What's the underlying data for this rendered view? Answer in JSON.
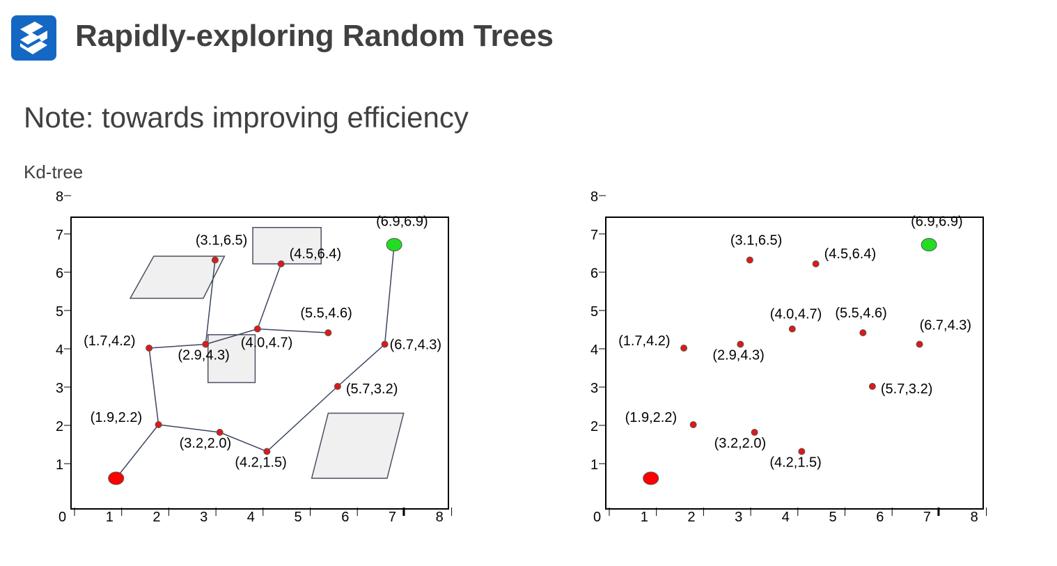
{
  "header": {
    "title": "Rapidly-exploring Random Trees",
    "logo_icon": "s-logo-icon",
    "logo_color": "#1468c4"
  },
  "section": {
    "heading": "Note: towards improving efficiency",
    "subheading": "Kd-tree"
  },
  "colors": {
    "start": "#ff0000",
    "goal": "#22dd22",
    "node": "#e01818",
    "edge": "#3c4660",
    "obstacle_fill": "#f0f0f0",
    "obstacle_stroke": "#4a5060"
  },
  "axis": {
    "x_ticks": [
      "0",
      "1",
      "2",
      "3",
      "4",
      "5",
      "6",
      "7",
      "8"
    ],
    "y_ticks": [
      "1",
      "2",
      "3",
      "4",
      "5",
      "6",
      "7",
      "8"
    ]
  },
  "start": {
    "x": 1.0,
    "y": 0.8
  },
  "goal": {
    "x": 6.9,
    "y": 6.9,
    "label": "(6.9,6.9)"
  },
  "nodes": [
    {
      "id": "n1",
      "x": 1.7,
      "y": 4.2,
      "label": "(1.7,4.2)"
    },
    {
      "id": "n2",
      "x": 1.9,
      "y": 2.2,
      "label": "(1.9,2.2)"
    },
    {
      "id": "n3",
      "x": 2.9,
      "y": 4.3,
      "label": "(2.9,4.3)"
    },
    {
      "id": "n4",
      "x": 3.1,
      "y": 6.5,
      "label": "(3.1,6.5)"
    },
    {
      "id": "n5",
      "x": 3.2,
      "y": 2.0,
      "label": "(3.2,2.0)"
    },
    {
      "id": "n6",
      "x": 4.0,
      "y": 4.7,
      "label": "(4.0,4.7)"
    },
    {
      "id": "n7",
      "x": 4.2,
      "y": 1.5,
      "label": "(4.2,1.5)"
    },
    {
      "id": "n8",
      "x": 4.5,
      "y": 6.4,
      "label": "(4.5,6.4)"
    },
    {
      "id": "n9",
      "x": 5.5,
      "y": 4.6,
      "label": "(5.5,4.6)"
    },
    {
      "id": "n10",
      "x": 5.7,
      "y": 3.2,
      "label": "(5.7,3.2)"
    },
    {
      "id": "n11",
      "x": 6.7,
      "y": 4.3,
      "label": "(6.7,4.3)"
    }
  ],
  "edges": [
    [
      "start",
      "n2"
    ],
    [
      "n2",
      "n1"
    ],
    [
      "n1",
      "n3"
    ],
    [
      "n3",
      "n4"
    ],
    [
      "n3",
      "n6"
    ],
    [
      "n6",
      "n8"
    ],
    [
      "n6",
      "n9"
    ],
    [
      "n2",
      "n5"
    ],
    [
      "n5",
      "n7"
    ],
    [
      "n7",
      "n10"
    ],
    [
      "n10",
      "n11"
    ],
    [
      "n11",
      "goal"
    ]
  ],
  "obstacles": [
    {
      "name": "obstacle-top-rect",
      "points": [
        [
          3.9,
          7.35
        ],
        [
          5.35,
          7.35
        ],
        [
          5.35,
          6.4
        ],
        [
          3.9,
          6.4
        ]
      ]
    },
    {
      "name": "obstacle-left-parallelogram",
      "points": [
        [
          1.8,
          6.6
        ],
        [
          3.3,
          6.6
        ],
        [
          2.85,
          5.5
        ],
        [
          1.3,
          5.5
        ]
      ]
    },
    {
      "name": "obstacle-center-square",
      "points": [
        [
          2.95,
          4.55
        ],
        [
          3.95,
          4.55
        ],
        [
          3.95,
          3.3
        ],
        [
          2.95,
          3.3
        ]
      ]
    },
    {
      "name": "obstacle-bottom-parallelogram",
      "points": [
        [
          5.5,
          2.5
        ],
        [
          7.1,
          2.5
        ],
        [
          6.75,
          0.8
        ],
        [
          5.15,
          0.8
        ]
      ]
    }
  ]
}
